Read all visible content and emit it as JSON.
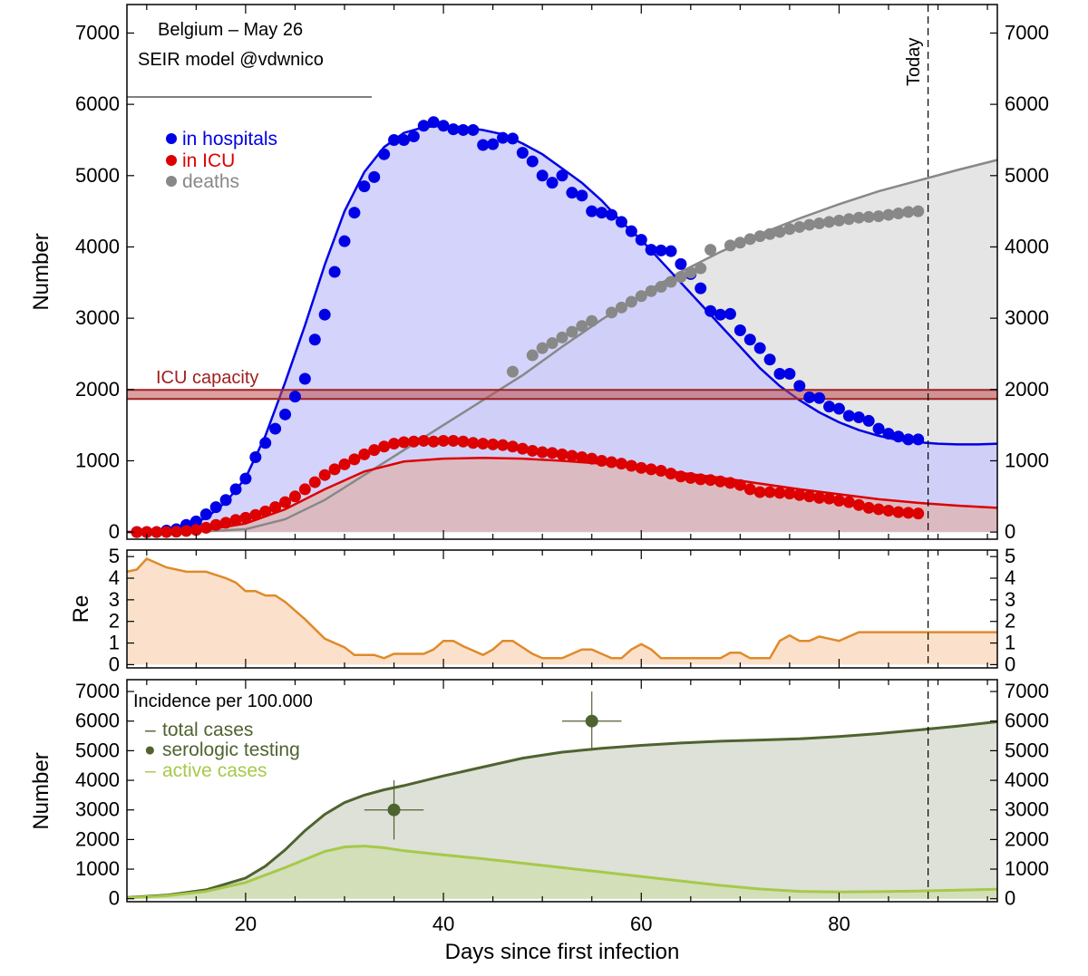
{
  "colors": {
    "hospital": "#0000e6",
    "hospital_fill": "#c9c9fb",
    "icu": "#dd0000",
    "icu_fill": "#ddb7b7",
    "deaths": "#888888",
    "deaths_fill": "#e5e5e5",
    "capacity": "#a02020",
    "re": "#e08a2a",
    "re_fill": "#fbe1cc",
    "total": "#4f6330",
    "total_fill": "#dde1d7",
    "active": "#a6c94a",
    "active_fill": "#d3dfb9"
  },
  "chart_data": [
    {
      "type": "line",
      "panel": "top",
      "ylabel": "Number",
      "xlim": [
        8,
        96
      ],
      "ylim": [
        -100,
        7400
      ],
      "xticks": [
        20,
        40,
        60,
        80
      ],
      "yticks": [
        0,
        1000,
        2000,
        3000,
        4000,
        5000,
        6000,
        7000
      ],
      "grid": false,
      "legend_position": "top-left",
      "annotations": {
        "title_line1": "Belgium – May 26",
        "title_line2": "SEIR model @vdwnico",
        "icu_capacity_label": "ICU capacity",
        "today_label": "Today"
      },
      "today_x": 89,
      "icu_capacity": 1930,
      "legend": [
        {
          "name": "in hospitals",
          "color_key": "hospital"
        },
        {
          "name": "in ICU",
          "color_key": "icu"
        },
        {
          "name": "deaths",
          "color_key": "deaths"
        }
      ],
      "series": [
        {
          "name": "in hospitals",
          "kind": "model",
          "color_key": "hospital",
          "fill_key": "hospital_fill",
          "x": [
            8,
            10,
            12,
            14,
            16,
            18,
            20,
            22,
            24,
            26,
            28,
            30,
            32,
            34,
            36,
            38,
            40,
            42,
            44,
            46,
            48,
            50,
            52,
            54,
            56,
            58,
            60,
            62,
            64,
            66,
            68,
            70,
            72,
            74,
            76,
            78,
            80,
            82,
            84,
            86,
            88,
            90,
            92,
            94,
            96
          ],
          "y": [
            0,
            10,
            30,
            80,
            200,
            420,
            760,
            1350,
            2100,
            2900,
            3750,
            4500,
            5050,
            5400,
            5600,
            5680,
            5700,
            5680,
            5640,
            5580,
            5450,
            5300,
            5100,
            4900,
            4650,
            4350,
            4100,
            3800,
            3500,
            3200,
            2900,
            2600,
            2300,
            2050,
            1850,
            1680,
            1540,
            1430,
            1350,
            1290,
            1260,
            1240,
            1230,
            1230,
            1240
          ]
        },
        {
          "name": "in ICU",
          "kind": "model",
          "color_key": "icu",
          "fill_key": "icu_fill",
          "x": [
            8,
            12,
            16,
            20,
            24,
            28,
            32,
            36,
            40,
            44,
            48,
            52,
            56,
            60,
            64,
            68,
            72,
            76,
            80,
            84,
            88,
            92,
            96
          ],
          "y": [
            0,
            5,
            30,
            120,
            320,
            600,
            850,
            990,
            1030,
            1040,
            1030,
            1000,
            960,
            900,
            830,
            760,
            680,
            600,
            530,
            460,
            410,
            370,
            340
          ]
        },
        {
          "name": "deaths",
          "kind": "model",
          "color_key": "deaths",
          "fill_key": "deaths_fill",
          "x": [
            8,
            16,
            20,
            24,
            28,
            32,
            36,
            40,
            44,
            48,
            52,
            56,
            60,
            64,
            68,
            72,
            76,
            80,
            84,
            88,
            92,
            96
          ],
          "y": [
            0,
            10,
            40,
            180,
            450,
            800,
            1150,
            1500,
            1850,
            2200,
            2600,
            2980,
            3330,
            3650,
            3930,
            4180,
            4400,
            4600,
            4780,
            4930,
            5080,
            5220
          ]
        },
        {
          "name": "in hospitals",
          "kind": "observed",
          "color_key": "hospital",
          "x": [
            9,
            10,
            11,
            12,
            13,
            14,
            15,
            16,
            17,
            18,
            19,
            20,
            21,
            22,
            23,
            24,
            25,
            26,
            27,
            28,
            29,
            30,
            31,
            32,
            33,
            34,
            35,
            36,
            37,
            38,
            39,
            40,
            41,
            42,
            43,
            44,
            45,
            46,
            47,
            48,
            49,
            50,
            51,
            52,
            53,
            54,
            55,
            56,
            57,
            58,
            59,
            60,
            61,
            62,
            63,
            64,
            65,
            66,
            67,
            68,
            69,
            70,
            71,
            72,
            73,
            74,
            75,
            76,
            77,
            78,
            79,
            80,
            81,
            82,
            83,
            84,
            85,
            86,
            87,
            88
          ],
          "y": [
            0,
            0,
            0,
            20,
            40,
            100,
            150,
            250,
            350,
            450,
            600,
            750,
            1050,
            1250,
            1450,
            1650,
            1900,
            2150,
            2700,
            3050,
            3650,
            4080,
            4480,
            4850,
            4980,
            5300,
            5500,
            5500,
            5550,
            5700,
            5750,
            5700,
            5650,
            5640,
            5640,
            5430,
            5440,
            5530,
            5520,
            5320,
            5200,
            5000,
            4900,
            5000,
            4760,
            4720,
            4500,
            4480,
            4450,
            4350,
            4220,
            4100,
            3960,
            3950,
            3940,
            3760,
            3620,
            3420,
            3100,
            3050,
            3060,
            2830,
            2700,
            2580,
            2420,
            2220,
            2220,
            2050,
            1890,
            1880,
            1760,
            1730,
            1630,
            1610,
            1560,
            1450,
            1380,
            1340,
            1300,
            1300
          ]
        },
        {
          "name": "in ICU",
          "kind": "observed",
          "color_key": "icu",
          "x": [
            9,
            10,
            11,
            12,
            13,
            14,
            15,
            16,
            17,
            18,
            19,
            20,
            21,
            22,
            23,
            24,
            25,
            26,
            27,
            28,
            29,
            30,
            31,
            32,
            33,
            34,
            35,
            36,
            37,
            38,
            39,
            40,
            41,
            42,
            43,
            44,
            45,
            46,
            47,
            48,
            49,
            50,
            51,
            52,
            53,
            54,
            55,
            56,
            57,
            58,
            59,
            60,
            61,
            62,
            63,
            64,
            65,
            66,
            67,
            68,
            69,
            70,
            71,
            72,
            73,
            74,
            75,
            76,
            77,
            78,
            79,
            80,
            81,
            82,
            83,
            84,
            85,
            86,
            87,
            88
          ],
          "y": [
            0,
            0,
            0,
            0,
            5,
            15,
            30,
            60,
            100,
            130,
            170,
            200,
            240,
            290,
            350,
            420,
            500,
            600,
            700,
            800,
            880,
            950,
            1020,
            1090,
            1150,
            1200,
            1240,
            1260,
            1270,
            1280,
            1270,
            1280,
            1280,
            1270,
            1250,
            1240,
            1230,
            1220,
            1200,
            1170,
            1140,
            1120,
            1110,
            1090,
            1070,
            1050,
            1030,
            1000,
            980,
            960,
            930,
            900,
            880,
            860,
            820,
            780,
            760,
            740,
            730,
            710,
            690,
            660,
            600,
            560,
            560,
            550,
            540,
            520,
            500,
            480,
            470,
            440,
            420,
            380,
            340,
            320,
            300,
            280,
            270,
            260
          ]
        },
        {
          "name": "deaths",
          "kind": "observed",
          "color_key": "deaths",
          "x": [
            47,
            49,
            50,
            51,
            52,
            53,
            54,
            55,
            57,
            58,
            59,
            60,
            61,
            62,
            63,
            64,
            65,
            66,
            67,
            69,
            70,
            71,
            72,
            73,
            74,
            75,
            76,
            77,
            78,
            79,
            80,
            81,
            82,
            83,
            84,
            85,
            86,
            87,
            88
          ],
          "y": [
            2250,
            2480,
            2580,
            2650,
            2730,
            2810,
            2890,
            2960,
            3080,
            3150,
            3230,
            3310,
            3380,
            3440,
            3510,
            3580,
            3640,
            3700,
            3960,
            4020,
            4060,
            4110,
            4150,
            4180,
            4210,
            4250,
            4280,
            4310,
            4330,
            4350,
            4370,
            4390,
            4410,
            4420,
            4430,
            4450,
            4470,
            4490,
            4500
          ]
        }
      ]
    },
    {
      "type": "area",
      "panel": "middle",
      "ylabel": "Re",
      "xlim": [
        8,
        96
      ],
      "ylim": [
        -0.15,
        5.3
      ],
      "yticks": [
        0,
        1,
        2,
        3,
        4,
        5
      ],
      "grid": false,
      "today_x": 89,
      "series": [
        {
          "name": "Re",
          "color_key": "re",
          "fill_key": "re_fill",
          "x": [
            8,
            9,
            10,
            12,
            14,
            16,
            18,
            19,
            20,
            21,
            22,
            23,
            24,
            26,
            28,
            30,
            31,
            33,
            34,
            35,
            36,
            38,
            39,
            40,
            41,
            42,
            43,
            44,
            45,
            46,
            47,
            49,
            50,
            51,
            52,
            53,
            54,
            55,
            56,
            57,
            58,
            59,
            60,
            61,
            62,
            63,
            64,
            65,
            66,
            68,
            69,
            70,
            71,
            72,
            73,
            74,
            75,
            76,
            77,
            78,
            80,
            82,
            84,
            86,
            88,
            90,
            92,
            94,
            96
          ],
          "y": [
            4.3,
            4.4,
            4.9,
            4.5,
            4.3,
            4.3,
            4.0,
            3.8,
            3.4,
            3.4,
            3.2,
            3.2,
            2.9,
            2.1,
            1.2,
            0.8,
            0.45,
            0.45,
            0.3,
            0.5,
            0.5,
            0.5,
            0.7,
            1.1,
            1.1,
            0.85,
            0.65,
            0.45,
            0.7,
            1.1,
            1.1,
            0.5,
            0.3,
            0.3,
            0.3,
            0.5,
            0.7,
            0.7,
            0.5,
            0.3,
            0.3,
            0.7,
            0.95,
            0.7,
            0.3,
            0.3,
            0.3,
            0.3,
            0.3,
            0.3,
            0.55,
            0.55,
            0.3,
            0.3,
            0.3,
            1.1,
            1.35,
            1.1,
            1.1,
            1.3,
            1.1,
            1.5,
            1.5,
            1.5,
            1.5,
            1.5,
            1.5,
            1.5,
            1.5
          ]
        }
      ]
    },
    {
      "type": "line",
      "panel": "bottom",
      "ylabel": "Number",
      "xlabel": "Days since first infection",
      "xlim": [
        8,
        96
      ],
      "ylim": [
        -100,
        7400
      ],
      "xticks": [
        20,
        40,
        60,
        80
      ],
      "yticks": [
        0,
        1000,
        2000,
        3000,
        4000,
        5000,
        6000,
        7000
      ],
      "grid": false,
      "legend_position": "top-left",
      "today_x": 89,
      "annotations": {
        "heading": "Incidence per 100.000"
      },
      "legend": [
        {
          "name": "total cases",
          "marker": "–",
          "color_key": "total"
        },
        {
          "name": "serologic testing",
          "marker": "●",
          "color_key": "total"
        },
        {
          "name": "active cases",
          "marker": "–",
          "color_key": "active"
        }
      ],
      "series": [
        {
          "name": "total cases",
          "color_key": "total",
          "fill_key": "total_fill",
          "x": [
            8,
            12,
            16,
            20,
            22,
            24,
            26,
            28,
            30,
            32,
            34,
            36,
            40,
            44,
            48,
            52,
            56,
            60,
            64,
            68,
            72,
            76,
            80,
            84,
            88,
            92,
            96
          ],
          "y": [
            40,
            120,
            300,
            700,
            1100,
            1650,
            2300,
            2850,
            3250,
            3500,
            3680,
            3820,
            4150,
            4450,
            4750,
            4950,
            5080,
            5180,
            5260,
            5320,
            5360,
            5400,
            5480,
            5580,
            5700,
            5830,
            5980
          ]
        },
        {
          "name": "active cases",
          "color_key": "active",
          "fill_key": "active_fill",
          "x": [
            8,
            12,
            16,
            20,
            24,
            28,
            30,
            32,
            34,
            36,
            40,
            44,
            48,
            52,
            56,
            60,
            64,
            68,
            72,
            76,
            80,
            84,
            88,
            92,
            96
          ],
          "y": [
            30,
            100,
            250,
            550,
            1050,
            1600,
            1750,
            1780,
            1720,
            1620,
            1480,
            1350,
            1200,
            1050,
            900,
            750,
            600,
            450,
            330,
            250,
            230,
            240,
            260,
            290,
            320
          ]
        },
        {
          "name": "serologic testing",
          "kind": "observed",
          "color_key": "total",
          "points": [
            {
              "x": 35,
              "y": 3000,
              "xerr": 3,
              "yerr": 1000
            },
            {
              "x": 55,
              "y": 6000,
              "xerr": 3,
              "yerr": 1000
            }
          ]
        }
      ]
    }
  ]
}
